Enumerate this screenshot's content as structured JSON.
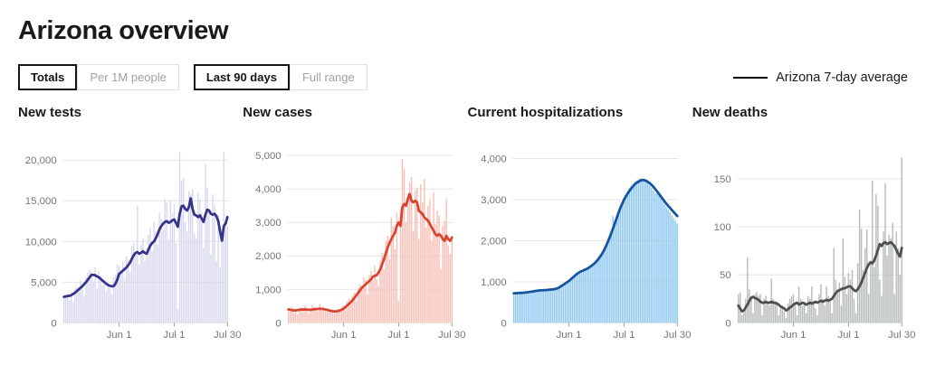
{
  "page": {
    "title": "Arizona overview"
  },
  "controls": {
    "groups": [
      {
        "name": "unit",
        "options": [
          {
            "label": "Totals",
            "selected": true
          },
          {
            "label": "Per 1M people",
            "selected": false
          }
        ]
      },
      {
        "name": "range",
        "options": [
          {
            "label": "Last 90 days",
            "selected": true
          },
          {
            "label": "Full range",
            "selected": false
          }
        ]
      }
    ],
    "legend": {
      "label": "Arizona 7-day average",
      "line_color": "#000000"
    }
  },
  "colors": {
    "grid": "#e4e4e4",
    "axis_text": "#757575",
    "tick_mark": "#9b9b9b"
  },
  "chart_data": [
    {
      "type": "bar",
      "title": "New tests",
      "bar_color": "#d9daee",
      "line_color": "#35338a",
      "y_max": 21600,
      "y_ticks": [
        0,
        5000,
        10000,
        15000,
        20000
      ],
      "y_tick_labels": [
        "0",
        "5,000",
        "10,000",
        "15,000",
        "20,000"
      ],
      "x_tick_indices": [
        30,
        60,
        89
      ],
      "x_tick_labels": [
        "Jun 1",
        "Jul 1",
        "Jul 30"
      ],
      "series": [
        {
          "name": "daily",
          "values": [
            3100,
            3400,
            3600,
            2800,
            3900,
            2500,
            4200,
            4400,
            4100,
            5200,
            4800,
            3200,
            5600,
            6200,
            6500,
            6300,
            5100,
            6800,
            4200,
            6400,
            5800,
            4600,
            5300,
            3900,
            5100,
            4300,
            3500,
            5600,
            5900,
            7200,
            7000,
            6500,
            7600,
            5400,
            8200,
            7800,
            6200,
            9400,
            9800,
            8400,
            14400,
            7200,
            9600,
            10400,
            7600,
            9200,
            10800,
            11600,
            8800,
            12400,
            11200,
            9600,
            13600,
            12800,
            11400,
            15200,
            14800,
            10200,
            15100,
            13400,
            14600,
            9800,
            1700,
            21000,
            17500,
            17800,
            12400,
            11200,
            16200,
            15800,
            16400,
            11000,
            10400,
            16000,
            15200,
            13600,
            9200,
            19500,
            16600,
            13800,
            8400,
            15800,
            14400,
            7600,
            13200,
            6800,
            11400,
            21000,
            12200,
            11800
          ]
        },
        {
          "name": "Arizona 7-day average",
          "values": [
            3200,
            3250,
            3300,
            3320,
            3400,
            3550,
            3700,
            3900,
            4100,
            4300,
            4500,
            4750,
            5000,
            5300,
            5600,
            5900,
            5880,
            5850,
            5700,
            5600,
            5400,
            5200,
            5000,
            4800,
            4650,
            4550,
            4500,
            4500,
            4800,
            5300,
            6000,
            6200,
            6400,
            6600,
            6800,
            7100,
            7400,
            7900,
            8300,
            8600,
            8700,
            8500,
            8600,
            8800,
            8600,
            8500,
            9000,
            9500,
            9800,
            10000,
            10400,
            10900,
            11500,
            11900,
            12200,
            12400,
            12500,
            12300,
            12400,
            12600,
            12700,
            12300,
            11800,
            13400,
            14300,
            14400,
            14000,
            13800,
            14200,
            15300,
            14000,
            13300,
            13200,
            13000,
            13200,
            12800,
            12400,
            13300,
            13900,
            13800,
            13400,
            13300,
            13400,
            13100,
            12500,
            11200,
            10100,
            11900,
            12200,
            13000
          ]
        }
      ]
    },
    {
      "type": "bar",
      "title": "New cases",
      "bar_color": "#f8c1b9",
      "line_color": "#d9442e",
      "y_max": 5250,
      "y_ticks": [
        0,
        1000,
        2000,
        3000,
        4000,
        5000
      ],
      "y_tick_labels": [
        "0",
        "1,000",
        "2,000",
        "3,000",
        "4,000",
        "5,000"
      ],
      "x_tick_indices": [
        30,
        60,
        89
      ],
      "x_tick_labels": [
        "Jun 1",
        "Jul 1",
        "Jul 30"
      ],
      "series": [
        {
          "name": "daily",
          "values": [
            350,
            420,
            480,
            300,
            410,
            250,
            440,
            460,
            380,
            520,
            450,
            280,
            430,
            540,
            480,
            420,
            350,
            560,
            430,
            480,
            370,
            420,
            310,
            400,
            330,
            280,
            380,
            420,
            350,
            480,
            520,
            380,
            640,
            720,
            560,
            820,
            900,
            650,
            1050,
            1150,
            980,
            1350,
            1280,
            850,
            1420,
            1550,
            1250,
            1700,
            1300,
            1100,
            1850,
            2100,
            1600,
            2450,
            2600,
            1900,
            3150,
            2900,
            2200,
            3300,
            650,
            3400,
            4900,
            4600,
            3000,
            3850,
            4200,
            4350,
            2750,
            3950,
            4050,
            2500,
            4150,
            3600,
            4300,
            2850,
            3500,
            3700,
            2450,
            3900,
            2950,
            3350,
            3200,
            1600,
            2900,
            3050,
            3700,
            2300,
            2050,
            2550
          ]
        },
        {
          "name": "Arizona 7-day average",
          "values": [
            400,
            390,
            380,
            370,
            375,
            380,
            390,
            395,
            400,
            400,
            395,
            390,
            390,
            395,
            405,
            410,
            415,
            420,
            420,
            410,
            400,
            390,
            375,
            360,
            350,
            340,
            345,
            355,
            370,
            395,
            420,
            470,
            520,
            570,
            620,
            685,
            750,
            825,
            900,
            975,
            1050,
            1100,
            1150,
            1200,
            1250,
            1300,
            1380,
            1400,
            1420,
            1500,
            1600,
            1750,
            1900,
            2080,
            2250,
            2380,
            2500,
            2600,
            2700,
            2900,
            3000,
            2900,
            3450,
            3550,
            3500,
            3700,
            3850,
            3650,
            3600,
            3650,
            3600,
            3350,
            3300,
            3250,
            3150,
            3100,
            3050,
            2950,
            2850,
            2750,
            2650,
            2600,
            2650,
            2600,
            2500,
            2450,
            2600,
            2500,
            2450,
            2550
          ]
        }
      ]
    },
    {
      "type": "bar",
      "title": "Current hospitalizations",
      "bar_color": "#8fc9f1",
      "line_color": "#17549f",
      "y_max": 4280,
      "y_ticks": [
        0,
        1000,
        2000,
        3000,
        4000
      ],
      "y_tick_labels": [
        "0",
        "1,000",
        "2,000",
        "3,000",
        "4,000"
      ],
      "x_tick_indices": [
        30,
        60,
        89
      ],
      "x_tick_labels": [
        "Jun 1",
        "Jul 1",
        "Jul 30"
      ],
      "series": [
        {
          "name": "daily",
          "values": [
            700,
            710,
            730,
            720,
            735,
            725,
            740,
            750,
            745,
            760,
            770,
            765,
            785,
            780,
            795,
            790,
            800,
            795,
            810,
            800,
            815,
            820,
            830,
            840,
            860,
            890,
            915,
            950,
            975,
            1005,
            1040,
            1080,
            1120,
            1155,
            1200,
            1225,
            1255,
            1270,
            1295,
            1320,
            1340,
            1370,
            1400,
            1440,
            1480,
            1530,
            1580,
            1650,
            1720,
            1800,
            1900,
            2000,
            2120,
            2240,
            2600,
            2480,
            2610,
            2740,
            2860,
            2950,
            3060,
            3140,
            3210,
            3280,
            3340,
            3390,
            3440,
            3470,
            3500,
            3520,
            3510,
            3490,
            3450,
            3400,
            3350,
            3290,
            3220,
            3150,
            3230,
            3100,
            3030,
            2960,
            2890,
            2820,
            2760,
            2700,
            2620,
            2550,
            2480,
            2420
          ]
        },
        {
          "name": "Arizona 7-day average",
          "values": [
            720,
            722,
            725,
            728,
            730,
            733,
            737,
            742,
            748,
            755,
            762,
            770,
            778,
            783,
            788,
            792,
            795,
            798,
            800,
            805,
            810,
            815,
            820,
            830,
            845,
            870,
            900,
            930,
            960,
            990,
            1020,
            1060,
            1100,
            1140,
            1180,
            1210,
            1240,
            1260,
            1280,
            1300,
            1320,
            1350,
            1380,
            1415,
            1450,
            1500,
            1550,
            1615,
            1680,
            1760,
            1850,
            1955,
            2060,
            2180,
            2300,
            2425,
            2550,
            2680,
            2800,
            2900,
            3000,
            3080,
            3150,
            3220,
            3280,
            3330,
            3380,
            3415,
            3440,
            3465,
            3480,
            3475,
            3460,
            3430,
            3400,
            3360,
            3310,
            3255,
            3200,
            3140,
            3080,
            3020,
            2960,
            2905,
            2850,
            2800,
            2750,
            2700,
            2650,
            2600
          ]
        }
      ]
    },
    {
      "type": "bar",
      "title": "New deaths",
      "bar_color": "#b7bdbb",
      "line_color": "#4f4f4f",
      "y_max": 183,
      "y_ticks": [
        0,
        50,
        100,
        150
      ],
      "y_tick_labels": [
        "0",
        "50",
        "100",
        "150"
      ],
      "x_tick_indices": [
        30,
        60,
        89
      ],
      "x_tick_labels": [
        "Jun 1",
        "Jul 1",
        "Jul 30"
      ],
      "series": [
        {
          "name": "daily",
          "values": [
            30,
            32,
            8,
            12,
            25,
            68,
            35,
            28,
            10,
            30,
            32,
            28,
            30,
            8,
            25,
            28,
            22,
            18,
            46,
            25,
            20,
            22,
            8,
            15,
            18,
            12,
            5,
            20,
            25,
            28,
            30,
            22,
            8,
            38,
            25,
            18,
            22,
            10,
            28,
            25,
            38,
            22,
            15,
            8,
            30,
            40,
            25,
            18,
            38,
            28,
            22,
            10,
            78,
            45,
            35,
            42,
            18,
            88,
            48,
            30,
            52,
            45,
            55,
            25,
            10,
            62,
            118,
            98,
            55,
            78,
            97,
            30,
            65,
            148,
            58,
            134,
            122,
            45,
            28,
            95,
            145,
            70,
            92,
            88,
            104,
            30,
            95,
            78,
            50,
            172
          ]
        },
        {
          "name": "Arizona 7-day average",
          "values": [
            18,
            15,
            12,
            13,
            16,
            19,
            23,
            26,
            27,
            26,
            25,
            24,
            22,
            21,
            21,
            22,
            21,
            21,
            22,
            21,
            21,
            20,
            19,
            17,
            16,
            15,
            13,
            14,
            16,
            17,
            19,
            20,
            21,
            19,
            20,
            21,
            20,
            19,
            20,
            21,
            20,
            21,
            22,
            21,
            22,
            23,
            22,
            23,
            24,
            23,
            24,
            25,
            28,
            31,
            33,
            34,
            35,
            36,
            36,
            37,
            38,
            38,
            36,
            34,
            33,
            35,
            38,
            42,
            47,
            52,
            57,
            61,
            63,
            62,
            65,
            70,
            76,
            82,
            80,
            83,
            84,
            82,
            83,
            84,
            82,
            80,
            76,
            72,
            69,
            78
          ]
        }
      ]
    }
  ]
}
